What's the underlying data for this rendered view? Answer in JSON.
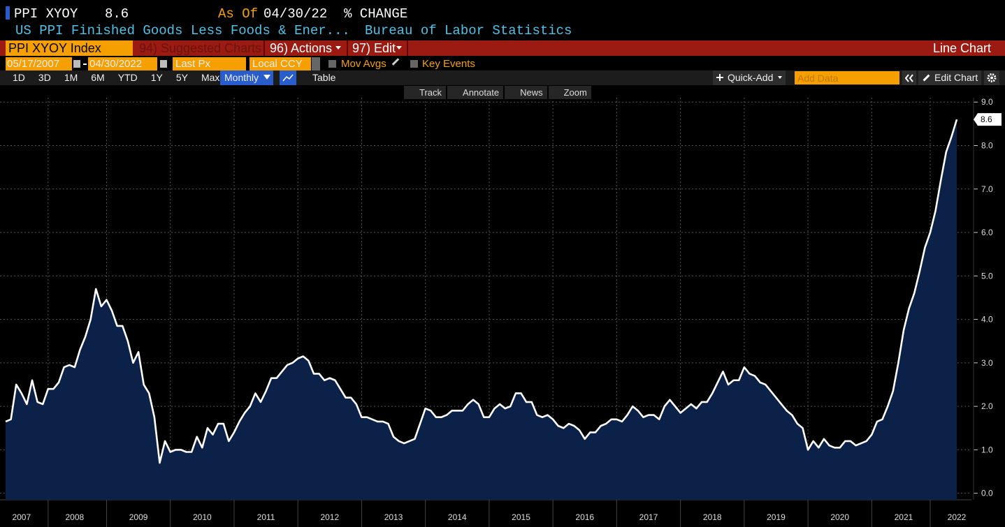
{
  "header": {
    "ticker": "PPI XYOY",
    "last_value": "8.6",
    "as_of_label": "As Of",
    "as_of_date": "04/30/22",
    "change_label": "% CHANGE",
    "description": "US PPI Finished Goods Less Foods & Ener...",
    "source": "Bureau of Labor Statistics"
  },
  "toolbar": {
    "security": "PPI XYOY Index",
    "suggested": "94) Suggested Charts",
    "actions": "96) Actions",
    "edit": "97) Edit",
    "chart_type": "Line Chart"
  },
  "controls": {
    "start_date": "05/17/2007",
    "end_date": "04/30/2022",
    "price_field": "Last Px",
    "currency": "Local CCY",
    "moving_averages": "Mov Avgs",
    "key_events": "Key Events"
  },
  "ranges": [
    "1D",
    "3D",
    "1M",
    "6M",
    "YTD",
    "1Y",
    "5Y",
    "Max"
  ],
  "period": "Monthly",
  "table_tab": "Table",
  "quick_add": "Quick-Add",
  "add_data": "Add Data",
  "edit_chart": "Edit Chart",
  "chart_tools": [
    "Track",
    "Annotate",
    "News",
    "Zoom"
  ],
  "chart_data": {
    "type": "area",
    "color": "#ffffff",
    "fill_color": "#0c2148",
    "grid": true,
    "categories": [
      null,
      null,
      null,
      "2007",
      null,
      null,
      null,
      null,
      null,
      null,
      null,
      null,
      null,
      "2008",
      null,
      null,
      null,
      null,
      null,
      null,
      null,
      null,
      null,
      null,
      null,
      "2009",
      null,
      null,
      null,
      null,
      null,
      null,
      null,
      null,
      null,
      null,
      null,
      "2010",
      null,
      null,
      null,
      null,
      null,
      null,
      null,
      null,
      null,
      null,
      null,
      "2011",
      null,
      null,
      null,
      null,
      null,
      null,
      null,
      null,
      null,
      null,
      null,
      "2012",
      null,
      null,
      null,
      null,
      null,
      null,
      null,
      null,
      null,
      null,
      null,
      "2013",
      null,
      null,
      null,
      null,
      null,
      null,
      null,
      null,
      null,
      null,
      null,
      "2014",
      null,
      null,
      null,
      null,
      null,
      null,
      null,
      null,
      null,
      null,
      null,
      "2015",
      null,
      null,
      null,
      null,
      null,
      null,
      null,
      null,
      null,
      null,
      null,
      "2016",
      null,
      null,
      null,
      null,
      null,
      null,
      null,
      null,
      null,
      null,
      null,
      "2017",
      null,
      null,
      null,
      null,
      null,
      null,
      null,
      null,
      null,
      null,
      null,
      "2018",
      null,
      null,
      null,
      null,
      null,
      null,
      null,
      null,
      null,
      null,
      null,
      "2019",
      null,
      null,
      null,
      null,
      null,
      null,
      null,
      null,
      null,
      null,
      null,
      "2020",
      null,
      null,
      null,
      null,
      null,
      null,
      null,
      null,
      null,
      null,
      null,
      "2021",
      null,
      null,
      null,
      null,
      null,
      null,
      null,
      null,
      null,
      "2022"
    ],
    "values": [
      1.65,
      1.7,
      2.5,
      2.3,
      2.05,
      2.6,
      2.1,
      2.05,
      2.4,
      2.4,
      2.55,
      2.9,
      2.95,
      2.9,
      3.3,
      3.6,
      4.0,
      4.7,
      4.3,
      4.45,
      4.2,
      3.85,
      3.85,
      3.5,
      3.0,
      3.25,
      2.5,
      2.3,
      1.75,
      0.7,
      1.2,
      0.95,
      1.0,
      1.0,
      0.95,
      0.95,
      1.3,
      1.05,
      1.5,
      1.35,
      1.6,
      1.6,
      1.2,
      1.4,
      1.65,
      1.85,
      2.0,
      2.3,
      2.1,
      2.35,
      2.65,
      2.65,
      2.8,
      2.95,
      3.0,
      3.1,
      3.15,
      3.05,
      2.75,
      2.75,
      2.6,
      2.65,
      2.6,
      2.4,
      2.2,
      2.2,
      2.05,
      1.75,
      1.75,
      1.7,
      1.65,
      1.65,
      1.6,
      1.3,
      1.2,
      1.15,
      1.2,
      1.25,
      1.6,
      1.95,
      1.9,
      1.75,
      1.75,
      1.8,
      1.9,
      1.9,
      1.9,
      2.05,
      2.15,
      2.05,
      1.75,
      1.75,
      1.95,
      2.05,
      1.95,
      2.0,
      2.3,
      2.3,
      2.1,
      2.1,
      1.8,
      1.75,
      1.8,
      1.7,
      1.55,
      1.5,
      1.6,
      1.55,
      1.45,
      1.25,
      1.4,
      1.4,
      1.55,
      1.6,
      1.7,
      1.7,
      1.65,
      1.8,
      2.0,
      1.9,
      1.75,
      1.8,
      1.8,
      1.7,
      2.0,
      2.15,
      2.0,
      1.85,
      1.95,
      2.05,
      1.95,
      2.1,
      2.1,
      2.3,
      2.55,
      2.8,
      2.5,
      2.6,
      2.6,
      2.9,
      2.75,
      2.7,
      2.55,
      2.5,
      2.35,
      2.2,
      2.05,
      1.9,
      1.8,
      1.6,
      1.5,
      1.0,
      1.2,
      1.05,
      1.25,
      1.1,
      1.05,
      1.05,
      1.2,
      1.2,
      1.1,
      1.15,
      1.2,
      1.35,
      1.65,
      1.7,
      2.0,
      2.35,
      3.0,
      3.75,
      4.25,
      4.6,
      5.1,
      5.65,
      6.0,
      6.5,
      7.2,
      7.85,
      8.2,
      8.6
    ],
    "ylim": [
      -0.15,
      9.1
    ],
    "yticks": [
      {
        "value": 0,
        "label": "0.0"
      },
      {
        "value": 1,
        "label": "1.0"
      },
      {
        "value": 2,
        "label": "2.0"
      },
      {
        "value": 3,
        "label": "3.0"
      },
      {
        "value": 4,
        "label": "4.0"
      },
      {
        "value": 5,
        "label": "5.0"
      },
      {
        "value": 6,
        "label": "6.0"
      },
      {
        "value": 7,
        "label": "7.0"
      },
      {
        "value": 8,
        "label": "8.0"
      },
      {
        "value": 9,
        "label": "9.0"
      }
    ]
  }
}
